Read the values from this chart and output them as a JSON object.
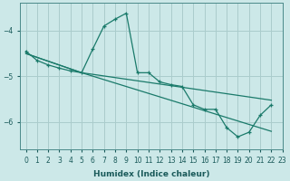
{
  "xlabel": "Humidex (Indice chaleur)",
  "background_color": "#cce8e8",
  "grid_color": "#aacccc",
  "line_color": "#1a7a6a",
  "xlim": [
    -0.5,
    23
  ],
  "ylim": [
    -6.6,
    -3.4
  ],
  "yticks": [
    -6,
    -5,
    -4
  ],
  "xticks": [
    0,
    1,
    2,
    3,
    4,
    5,
    6,
    7,
    8,
    9,
    10,
    11,
    12,
    13,
    14,
    15,
    16,
    17,
    18,
    19,
    20,
    21,
    22,
    23
  ],
  "series": [
    {
      "x": [
        0,
        1,
        2,
        3,
        4,
        5,
        6,
        7,
        8,
        9,
        10,
        11,
        12,
        13,
        14,
        15,
        16,
        17,
        18,
        19,
        20,
        21,
        22
      ],
      "y": [
        -4.45,
        -4.65,
        -4.75,
        -4.82,
        -4.88,
        -4.92,
        -4.4,
        -3.9,
        -3.75,
        -3.62,
        -4.92,
        -4.92,
        -5.12,
        -5.18,
        -5.22,
        -5.62,
        -5.72,
        -5.72,
        -6.12,
        -6.32,
        -6.22,
        -5.85,
        -5.62
      ]
    },
    {
      "x": [
        0,
        5,
        22
      ],
      "y": [
        -4.5,
        -4.92,
        -5.52
      ]
    },
    {
      "x": [
        0,
        5,
        22
      ],
      "y": [
        -4.5,
        -4.92,
        -6.2
      ]
    }
  ]
}
